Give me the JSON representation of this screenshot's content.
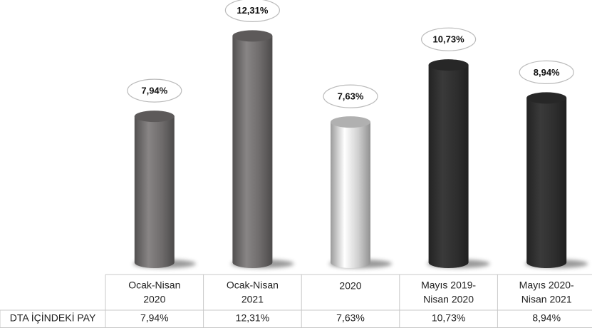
{
  "chart_data": {
    "type": "bar",
    "row_label": "DTA İÇİNDEKİ PAY",
    "categories": [
      [
        "Ocak-Nisan",
        "2020"
      ],
      [
        "Ocak-Nisan",
        "2021"
      ],
      [
        "2020"
      ],
      [
        "Mayıs 2019-",
        "Nisan 2020"
      ],
      [
        "Mayıs 2020-",
        "Nisan 2021"
      ]
    ],
    "values": [
      7.94,
      12.31,
      7.63,
      10.73,
      8.94
    ],
    "value_labels": [
      "7,94%",
      "12,31%",
      "7,63%",
      "10,73%",
      "8,94%"
    ],
    "colors": [
      "#6d6a6a",
      "#6d6a6a",
      "#cfcfcf",
      "#2e2e2e",
      "#2e2e2e"
    ]
  }
}
